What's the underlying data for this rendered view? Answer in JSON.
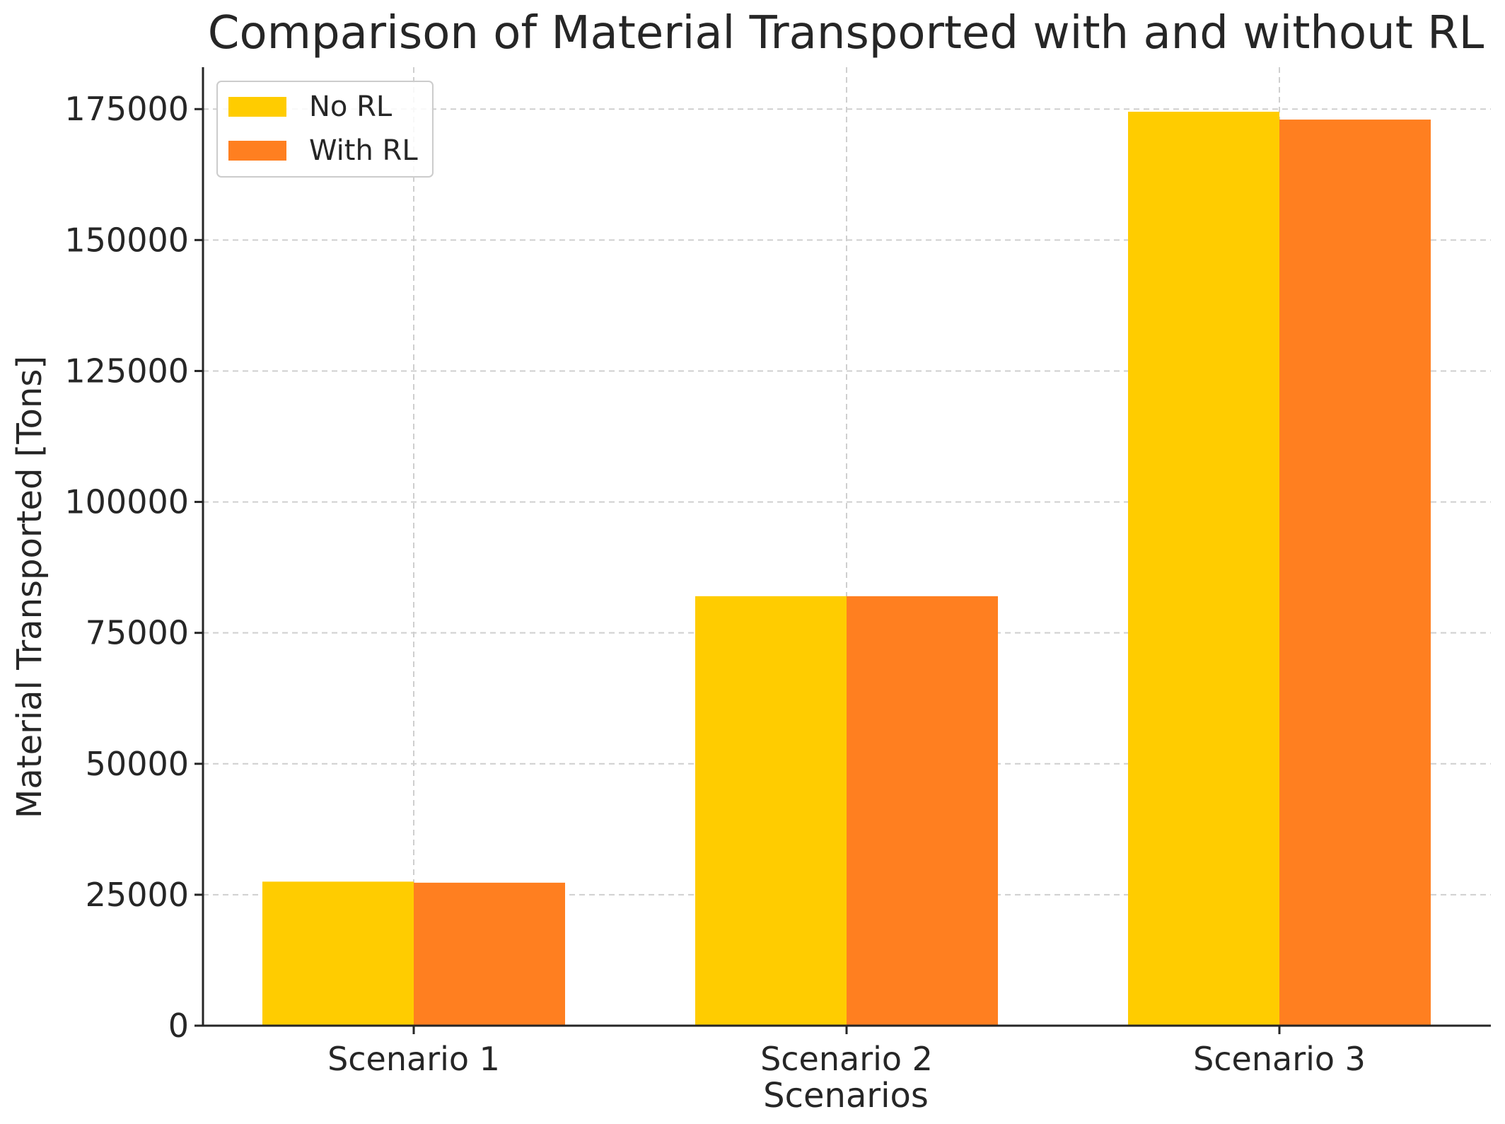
{
  "chart_data": {
    "type": "bar",
    "title": "Comparison of Material Transported with and without RL",
    "xlabel": "Scenarios",
    "ylabel": "Material Transported [Tons]",
    "categories": [
      "Scenario 1",
      "Scenario 2",
      "Scenario 3"
    ],
    "series": [
      {
        "name": "No RL",
        "color": "#FFCC00",
        "values": [
          27500,
          82000,
          174500
        ]
      },
      {
        "name": "With RL",
        "color": "#FF7F20",
        "values": [
          27300,
          82000,
          173000
        ]
      }
    ],
    "ylim": [
      0,
      183000
    ],
    "yticks": [
      0,
      25000,
      50000,
      75000,
      100000,
      125000,
      150000,
      175000
    ],
    "ytick_labels": [
      "0",
      "25000",
      "50000",
      "75000",
      "100000",
      "125000",
      "150000",
      "175000"
    ],
    "grid": true,
    "legend_position": "top-left"
  }
}
